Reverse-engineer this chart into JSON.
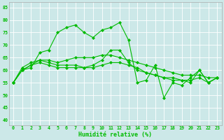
{
  "title": "",
  "xlabel": "Humidité relative (%)",
  "ylabel": "",
  "xlim": [
    -0.5,
    23.5
  ],
  "ylim": [
    38,
    87
  ],
  "yticks": [
    40,
    45,
    50,
    55,
    60,
    65,
    70,
    75,
    80,
    85
  ],
  "xticks": [
    0,
    1,
    2,
    3,
    4,
    5,
    6,
    7,
    8,
    9,
    10,
    11,
    12,
    13,
    14,
    15,
    16,
    17,
    18,
    19,
    20,
    21,
    22,
    23
  ],
  "background_color": "#cce8e8",
  "grid_color": "#aacccc",
  "line_color": "#00bb00",
  "series": [
    [
      55,
      60,
      61,
      67,
      68,
      75,
      77,
      78,
      75,
      73,
      76,
      77,
      79,
      72,
      55,
      56,
      62,
      49,
      55,
      54,
      57,
      60,
      55,
      57
    ],
    [
      55,
      61,
      63,
      64,
      64,
      63,
      64,
      65,
      65,
      65,
      66,
      66,
      65,
      64,
      63,
      62,
      61,
      60,
      59,
      58,
      58,
      58,
      57,
      57
    ],
    [
      55,
      60,
      62,
      64,
      63,
      62,
      62,
      62,
      61,
      61,
      62,
      63,
      63,
      62,
      61,
      59,
      58,
      57,
      57,
      56,
      56,
      57,
      55,
      57
    ],
    [
      55,
      60,
      62,
      63,
      62,
      61,
      61,
      61,
      61,
      62,
      64,
      68,
      68,
      63,
      60,
      59,
      58,
      57,
      56,
      56,
      55,
      60,
      55,
      57
    ]
  ]
}
